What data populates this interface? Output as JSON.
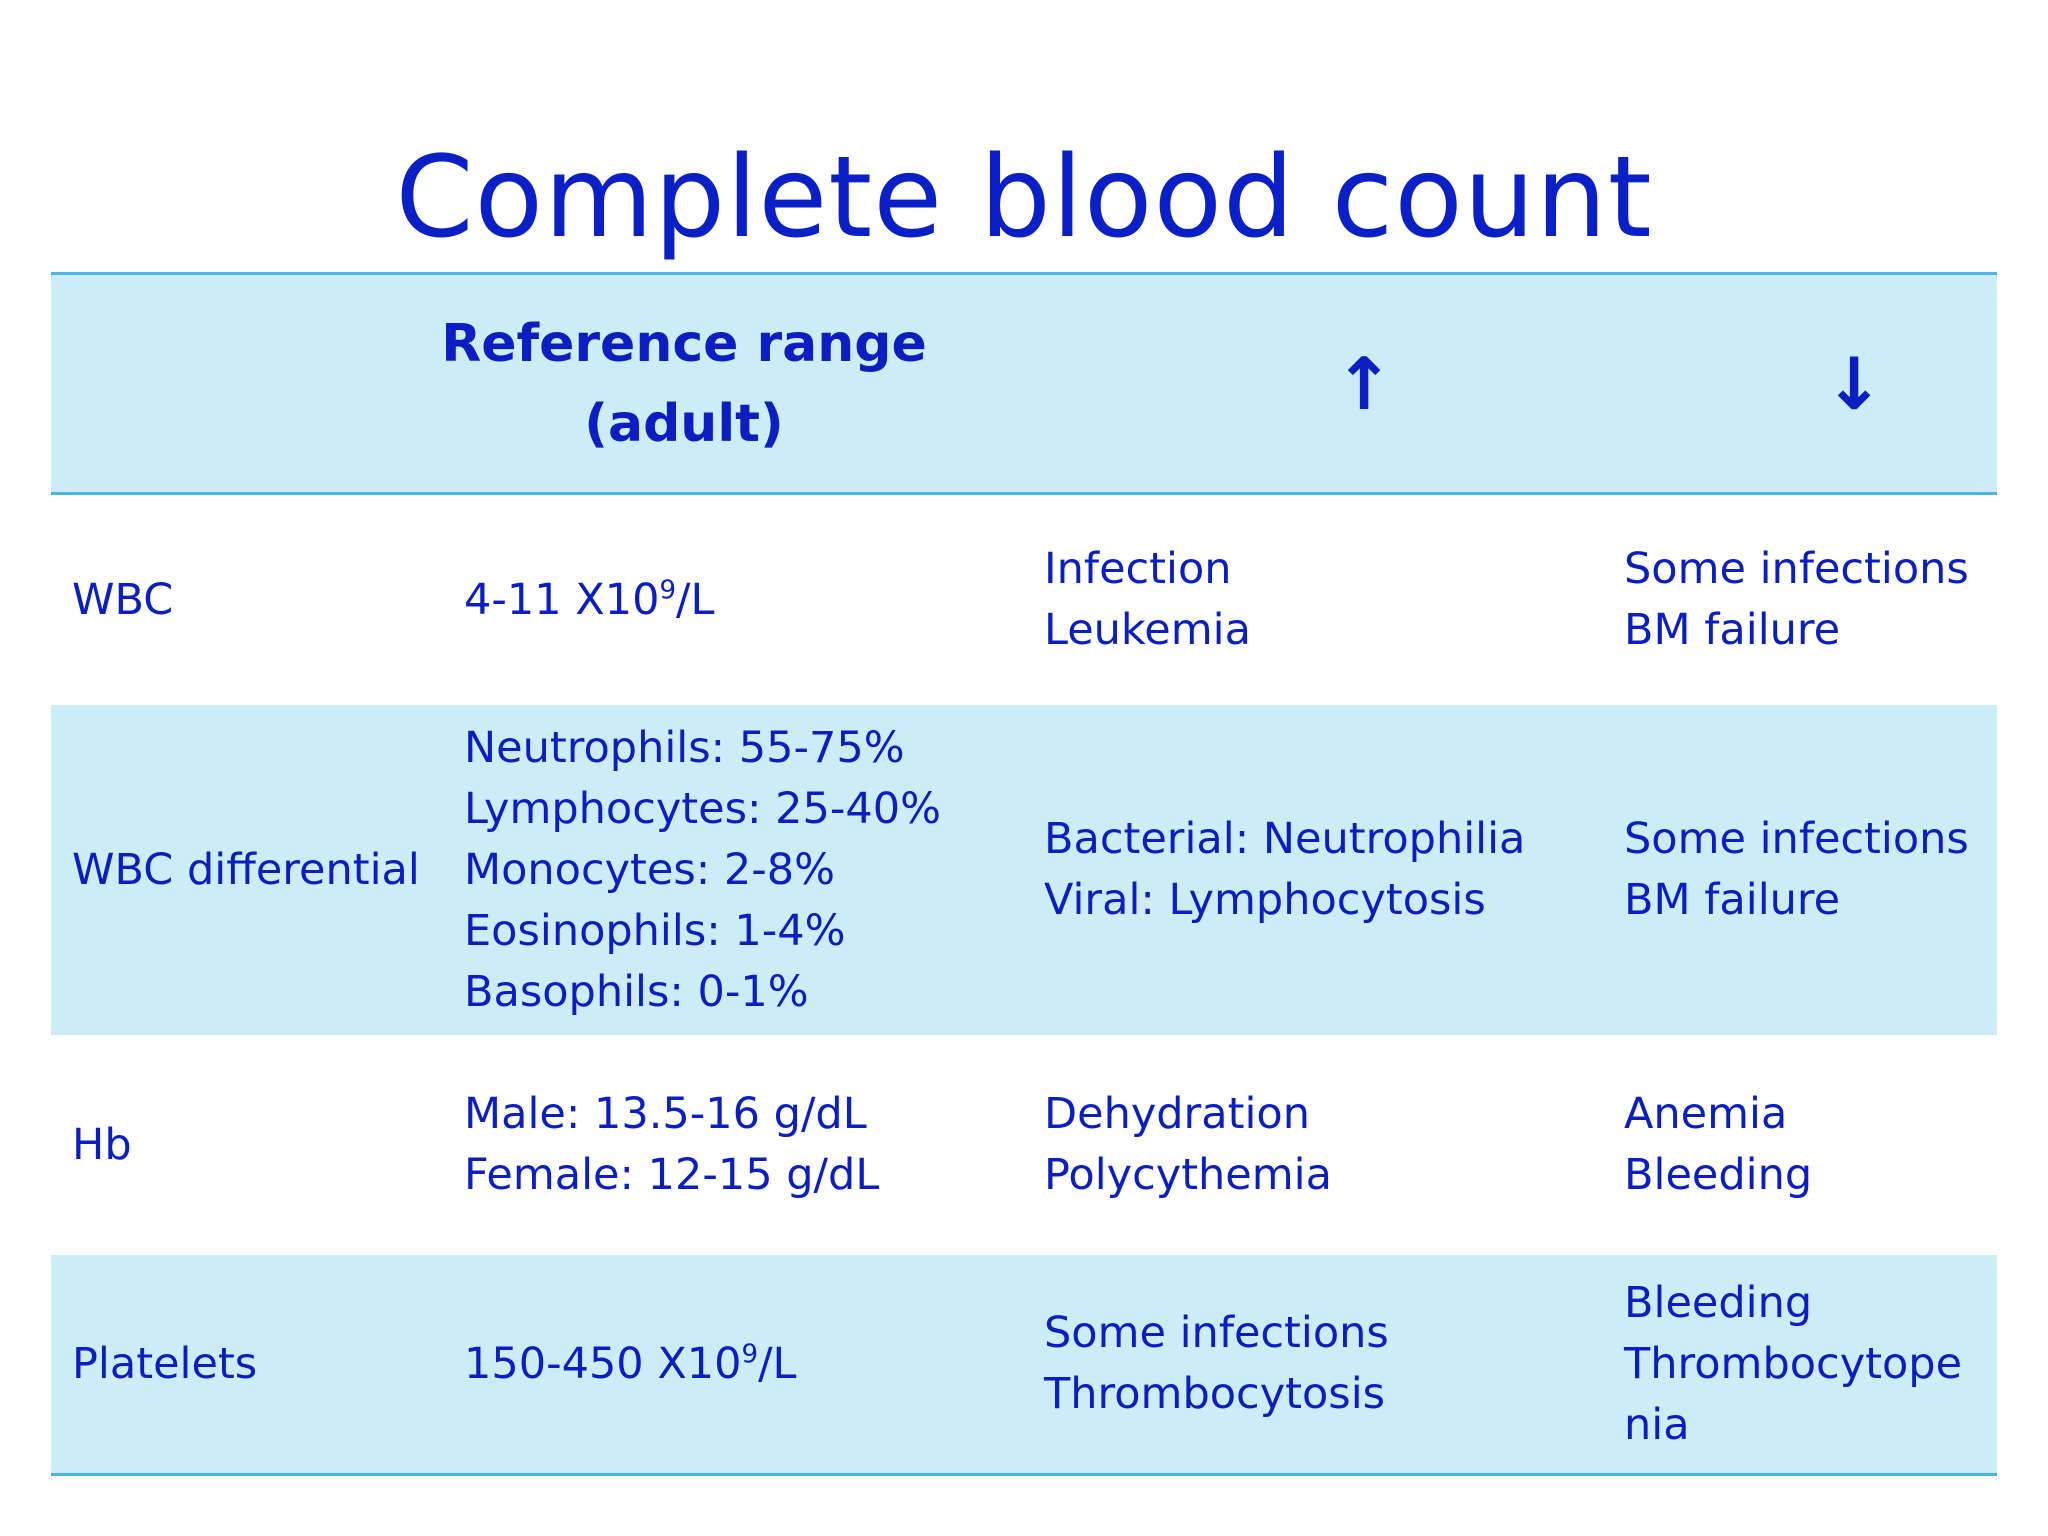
{
  "title": "Complete blood count",
  "header": {
    "reference_line1": "Reference range",
    "reference_line2": "(adult)",
    "increased_symbol": "↑",
    "decreased_symbol": "↓"
  },
  "rows": [
    {
      "name": "WBC",
      "reference": [
        "4-11 X10"
      ],
      "reference_sup": "9",
      "reference_suffix": "/L",
      "increased": [
        "Infection",
        "Leukemia"
      ],
      "decreased": [
        "Some infections",
        "BM failure"
      ]
    },
    {
      "name": "WBC differential",
      "reference": [
        "Neutrophils:  55-75%",
        "Lymphocytes: 25-40%",
        "Monocytes: 2-8%",
        "Eosinophils: 1-4%",
        "Basophils: 0-1%"
      ],
      "increased": [
        "Bacterial: Neutrophilia",
        "Viral: Lymphocytosis"
      ],
      "decreased": [
        "Some infections",
        "BM failure"
      ]
    },
    {
      "name": "Hb",
      "reference": [
        "Male: 13.5-16 g/dL",
        "Female: 12-15 g/dL"
      ],
      "increased": [
        "Dehydration",
        "Polycythemia"
      ],
      "decreased": [
        "Anemia",
        "Bleeding"
      ]
    },
    {
      "name": "Platelets",
      "reference": [
        "150-450 X10"
      ],
      "reference_sup": "9",
      "reference_suffix": "/L",
      "increased": [
        "Some infections",
        "Thrombocytosis"
      ],
      "decreased": [
        "Bleeding",
        "Thrombocytope",
        "nia"
      ]
    }
  ],
  "colors": {
    "text": "#0a1ec2",
    "shade": "#ccecf8",
    "rule": "#4fb3e3"
  }
}
